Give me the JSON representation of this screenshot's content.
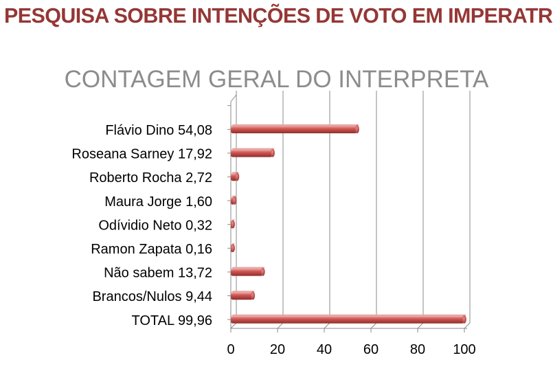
{
  "header": {
    "title": "PESQUISA SOBRE INTENÇÕES DE VOTO EM IMPERATRIZ"
  },
  "chart_data": {
    "type": "bar",
    "orientation": "horizontal",
    "title": "CONTAGEM GERAL DO INTERPRETA",
    "categories": [
      "Flávio Dino 54,08",
      "Roseana Sarney 17,92",
      "Roberto Rocha 2,72",
      "Maura Jorge 1,60",
      "Odívidio Neto 0,32",
      "Ramon Zapata 0,16",
      "Não sabem 13,72",
      "Brancos/Nulos 9,44",
      "TOTAL 99,96"
    ],
    "values": [
      54.08,
      17.92,
      2.72,
      1.6,
      0.32,
      0.16,
      13.72,
      9.44,
      99.96
    ],
    "xticks": [
      "0",
      "20",
      "40",
      "60",
      "80",
      "100"
    ],
    "xlim": [
      0,
      100
    ],
    "grid": true,
    "legend": "none",
    "bar_color": "#c0504d"
  }
}
